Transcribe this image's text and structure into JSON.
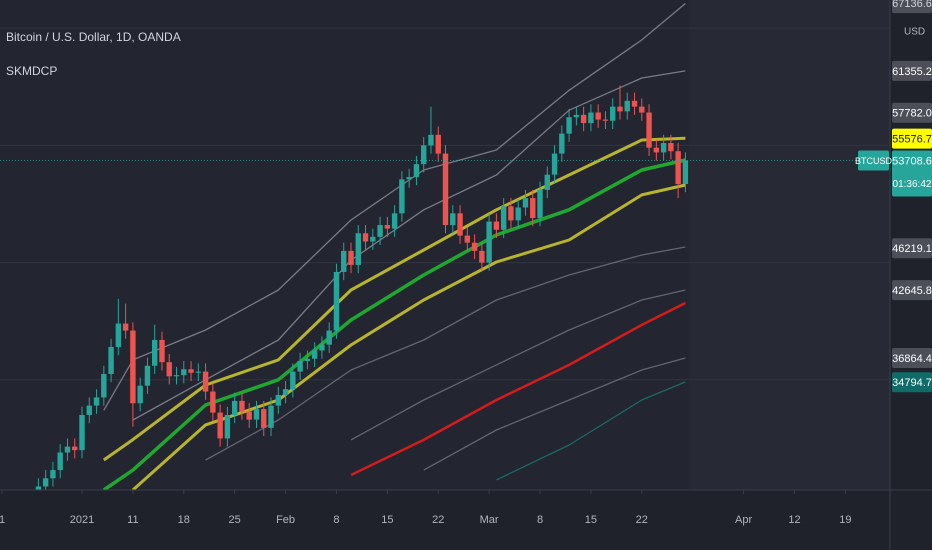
{
  "header": {
    "symbol": "Bitcoin / U.S. Dollar, 1D, OANDA",
    "indicator": "SKMDCP"
  },
  "chart_data": {
    "type": "candlestick",
    "x": [
      -3,
      -2,
      -1,
      0,
      1,
      2,
      3,
      4,
      5,
      6,
      7,
      8,
      9,
      10,
      11,
      12,
      13,
      14,
      15,
      16,
      17,
      18,
      19,
      20,
      21,
      22,
      23,
      24,
      25,
      26,
      27,
      28,
      29,
      30,
      31,
      32,
      33,
      34,
      35,
      36,
      37,
      38,
      39,
      40,
      41,
      42,
      43,
      44,
      45,
      46,
      47,
      48,
      49,
      50,
      51,
      52,
      53,
      54,
      55,
      56,
      57,
      58,
      59,
      60,
      61,
      62,
      63,
      64,
      65,
      66,
      67,
      68,
      69,
      70,
      71,
      72,
      73,
      74,
      75,
      76,
      77,
      78,
      79,
      80,
      81,
      82,
      83,
      84,
      85,
      86
    ],
    "open": [
      25200,
      25900,
      26600,
      27300,
      28800,
      29300,
      29000,
      32000,
      32800,
      33500,
      35500,
      37800,
      39800,
      39200,
      33000,
      34500,
      36200,
      38400,
      36500,
      35300,
      35400,
      35900,
      35600,
      35700,
      34000,
      32200,
      30000,
      32000,
      33200,
      32300,
      31600,
      32500,
      30900,
      32800,
      33700,
      34200,
      35700,
      36600,
      36800,
      37500,
      38000,
      39200,
      44200,
      46000,
      44800,
      47500,
      46800,
      47200,
      48200,
      47900,
      49200,
      52100,
      52300,
      53400,
      55000,
      55900,
      54300,
      48200,
      49200,
      47300,
      46700,
      46000,
      45000,
      48500,
      47800,
      49800,
      48600,
      49700,
      50500,
      48800,
      51200,
      52500,
      54300,
      56000,
      57400,
      57600,
      56900,
      57800,
      57200,
      57100,
      58300,
      57900,
      58800,
      58300,
      57800,
      54800,
      54400,
      55200,
      54500,
      51700
    ],
    "high": [
      26600,
      27300,
      28000,
      29500,
      30000,
      30000,
      32700,
      33500,
      34200,
      36200,
      38500,
      41900,
      41500,
      39900,
      35200,
      36900,
      39700,
      39100,
      37200,
      36100,
      36600,
      36600,
      36400,
      36400,
      34700,
      32900,
      32700,
      33900,
      33900,
      33000,
      33200,
      33200,
      33500,
      34400,
      34900,
      36400,
      37300,
      37500,
      38200,
      38700,
      39900,
      44900,
      46700,
      46700,
      48200,
      48200,
      47900,
      48900,
      48900,
      49900,
      52800,
      53000,
      54100,
      55700,
      58300,
      56600,
      55000,
      49900,
      49900,
      48000,
      47400,
      46700,
      49200,
      49200,
      50500,
      50500,
      50400,
      51200,
      51200,
      51900,
      53200,
      55000,
      56700,
      58100,
      58300,
      58300,
      58500,
      58500,
      57900,
      59000,
      60100,
      59500,
      59500,
      59000,
      58500,
      55500,
      55900,
      55900,
      55200,
      54400
    ],
    "low": [
      24500,
      25200,
      25900,
      26600,
      28100,
      28300,
      28300,
      31300,
      32100,
      32800,
      34800,
      37100,
      38500,
      31000,
      32300,
      33800,
      35500,
      35800,
      34600,
      34600,
      34700,
      34900,
      34900,
      33300,
      31500,
      29300,
      29300,
      31300,
      31600,
      30900,
      30900,
      30200,
      30200,
      32100,
      33000,
      33500,
      35000,
      35900,
      36100,
      36800,
      37300,
      38500,
      43500,
      44100,
      44100,
      46100,
      46100,
      46500,
      47200,
      47200,
      48500,
      51400,
      51600,
      52700,
      54300,
      53600,
      47500,
      47500,
      46600,
      46000,
      45300,
      44300,
      44300,
      47100,
      47100,
      47900,
      47900,
      49000,
      48100,
      48100,
      50500,
      51800,
      53600,
      55300,
      56700,
      56200,
      56200,
      56500,
      56400,
      56400,
      57200,
      57200,
      57600,
      57100,
      54100,
      53700,
      53700,
      53800,
      50500,
      51000
    ],
    "close": [
      25900,
      26600,
      27300,
      28800,
      29300,
      29000,
      32000,
      32800,
      33500,
      35500,
      37800,
      39800,
      39200,
      33000,
      34500,
      36200,
      38400,
      36500,
      35300,
      35400,
      35900,
      35600,
      35700,
      34000,
      32200,
      30000,
      32000,
      33200,
      32300,
      31600,
      32500,
      30900,
      32800,
      33700,
      34200,
      35700,
      36600,
      36800,
      37500,
      38000,
      39200,
      44200,
      46000,
      44800,
      47500,
      46800,
      47200,
      48200,
      47900,
      49200,
      52100,
      52300,
      53400,
      55000,
      55900,
      54300,
      48200,
      49200,
      47300,
      46700,
      46000,
      45000,
      48500,
      47800,
      49800,
      48600,
      49700,
      50500,
      48800,
      51200,
      52500,
      54300,
      56000,
      57400,
      57600,
      56900,
      57800,
      57200,
      57100,
      58300,
      57900,
      58800,
      58300,
      57800,
      54800,
      54400,
      55200,
      54500,
      51700,
      53708.6
    ],
    "up_color": "#26a69a",
    "down_color": "#ef5350",
    "xlim": [
      -8.28,
      114.14
    ],
    "xticks": [
      {
        "value": -8,
        "label": "1"
      },
      {
        "value": 3,
        "label": "2021"
      },
      {
        "value": 10,
        "label": "11"
      },
      {
        "value": 17,
        "label": "18"
      },
      {
        "value": 24,
        "label": "25"
      },
      {
        "value": 31,
        "label": "Feb"
      },
      {
        "value": 38,
        "label": "8"
      },
      {
        "value": 45,
        "label": "15"
      },
      {
        "value": 52,
        "label": "22"
      },
      {
        "value": 59,
        "label": "Mar"
      },
      {
        "value": 66,
        "label": "8"
      },
      {
        "value": 73,
        "label": "15"
      },
      {
        "value": 80,
        "label": "22"
      },
      {
        "value": 94,
        "label": "Apr"
      },
      {
        "value": 101,
        "label": "12"
      },
      {
        "value": 108,
        "label": "19"
      }
    ],
    "ylim": [
      25600,
      67400
    ],
    "ygrid": [
      35000,
      45000,
      55000,
      65000
    ],
    "lines": {
      "x": [
        -8,
        6,
        10,
        20,
        30,
        40,
        50,
        60,
        70,
        80,
        86
      ],
      "series": [
        {
          "color": "#9598a1",
          "values": [
            null,
            32400,
            36700,
            39250,
            42660,
            48630,
            52900,
            54600,
            59700,
            64000,
            67100
          ]
        },
        {
          "color": "#9598a1",
          "values": [
            null,
            null,
            31570,
            35000,
            38400,
            45200,
            49500,
            52470,
            58000,
            60750,
            61355
          ]
        },
        {
          "color": "#b8b52c",
          "values": [
            null,
            28160,
            29900,
            34560,
            36700,
            42660,
            46070,
            49500,
            52470,
            55460,
            55600
          ]
        },
        {
          "color": "#1fa82f",
          "values": [
            null,
            25600,
            27300,
            32850,
            35000,
            40100,
            43940,
            47350,
            49500,
            52900,
            53750
          ]
        },
        {
          "color": "#b8b52c",
          "values": [
            null,
            null,
            25600,
            31150,
            33280,
            37970,
            41810,
            45050,
            46930,
            50770,
            51620
          ]
        },
        {
          "color": "#787b86",
          "values": [
            null,
            null,
            null,
            28160,
            31570,
            35840,
            38400,
            41810,
            43940,
            45650,
            46330
          ]
        },
        {
          "color": "#787b86",
          "values": [
            null,
            null,
            null,
            null,
            null,
            29870,
            33280,
            36270,
            39250,
            41810,
            42660
          ]
        },
        {
          "color": "#d41c1c",
          "values": [
            null,
            null,
            null,
            null,
            null,
            26880,
            29870,
            33280,
            36270,
            39680,
            41550
          ]
        },
        {
          "color": "#787b86",
          "values": [
            null,
            null,
            null,
            null,
            null,
            null,
            27300,
            30720,
            33280,
            35840,
            36860
          ]
        },
        {
          "color": "#1b7d78",
          "values": [
            null,
            null,
            null,
            null,
            null,
            null,
            null,
            26460,
            29440,
            33280,
            34820
          ]
        }
      ]
    },
    "price_labels": [
      {
        "value": 67136.6,
        "color": "#4c4f58",
        "text_color": "#d1d4dc"
      },
      {
        "value": 61355.2,
        "color": "#4c4f58",
        "text_color": "#ffffff"
      },
      {
        "value": 55576.7,
        "color": "#ffff00",
        "text_color": "#131722"
      },
      {
        "value": 57782,
        "label": "57782.0",
        "color": "#4c4f58",
        "text_color": "#ffffff"
      },
      {
        "value": 46219.1,
        "color": "#4c4f58",
        "text_color": "#ffffff"
      },
      {
        "value": 42645.8,
        "color": "#4c4f58",
        "text_color": "#ffffff"
      },
      {
        "value": 36864.4,
        "color": "#4c4f58",
        "text_color": "#ffffff"
      },
      {
        "value": 34794.7,
        "color": "#0f6b67",
        "text_color": "#ffffff"
      }
    ],
    "last_price": {
      "symbol": "BTCUSD",
      "value": 53708.6,
      "countdown": "01:36:42",
      "color": "#26a69a"
    },
    "currency": "USD"
  }
}
